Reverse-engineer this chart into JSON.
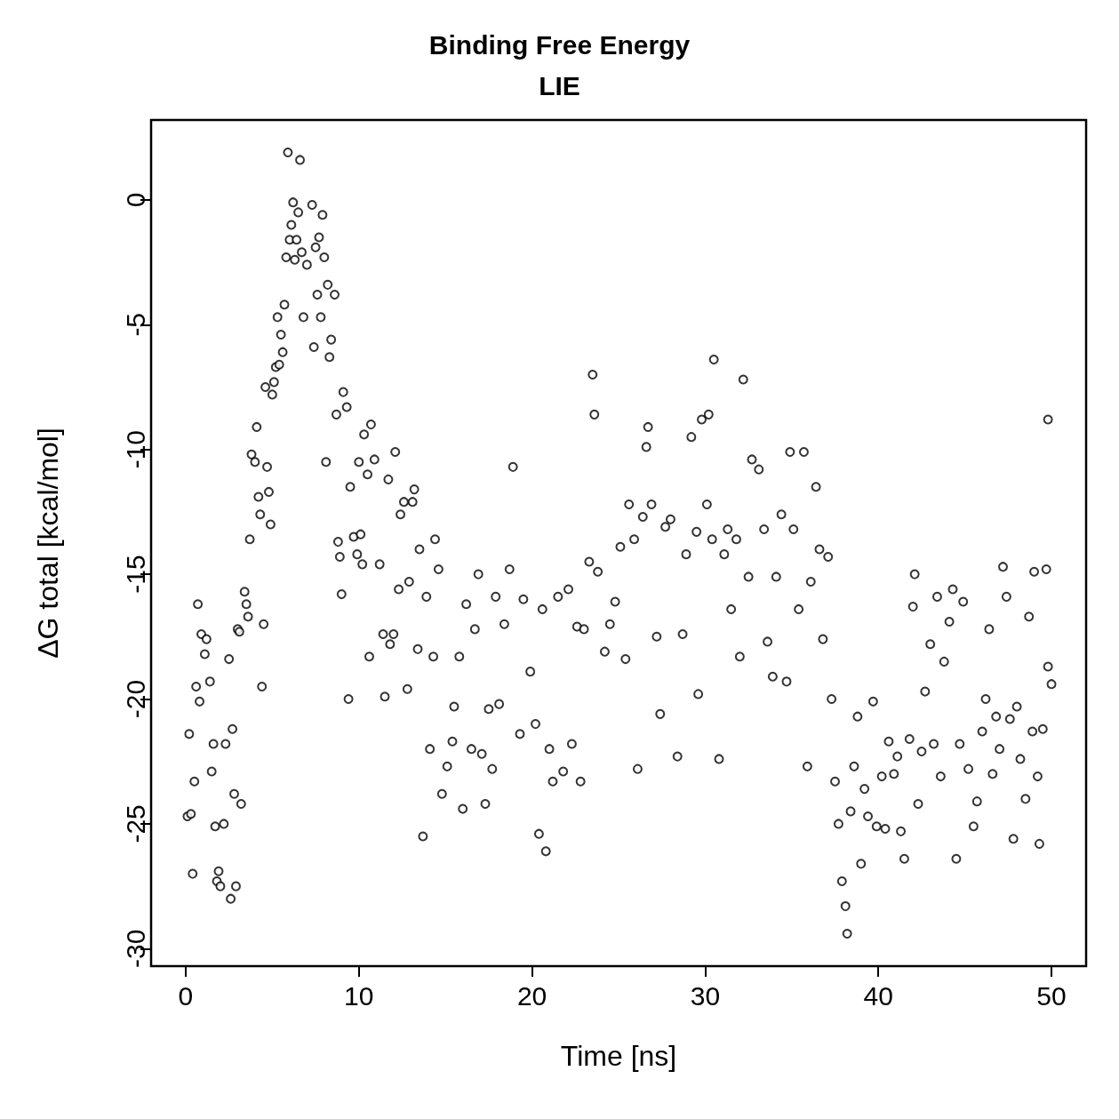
{
  "chart_data": {
    "type": "scatter",
    "title": "Binding Free Energy",
    "subtitle": "LIE",
    "xlabel": "Time [ns]",
    "ylabel": "ΔG total [kcal/mol]",
    "xlim": [
      -2,
      52
    ],
    "ylim": [
      -30.7,
      3.2
    ],
    "xticks": [
      0,
      10,
      20,
      30,
      40,
      50
    ],
    "yticks": [
      -30,
      -25,
      -20,
      -15,
      -10,
      -5,
      0
    ],
    "grid": false,
    "marker": "circle",
    "series": [
      {
        "color": "#000000",
        "x": [
          0.1,
          0.3,
          0.2,
          0.4,
          0.5,
          0.6,
          0.7,
          0.8,
          0.9,
          1.1,
          1.2,
          1.4,
          1.5,
          1.6,
          1.7,
          1.8,
          1.9,
          2.0,
          2.2,
          2.3,
          2.5,
          2.6,
          2.7,
          2.8,
          2.9,
          3.0,
          3.1,
          3.2,
          3.4,
          3.5,
          3.6,
          3.7,
          3.8,
          4.0,
          4.1,
          4.2,
          4.3,
          4.4,
          4.5,
          4.6,
          4.7,
          4.8,
          4.9,
          5.0,
          5.1,
          5.2,
          5.3,
          5.4,
          5.5,
          5.6,
          5.7,
          5.8,
          5.9,
          6.0,
          6.1,
          6.2,
          6.3,
          6.4,
          6.5,
          6.6,
          6.7,
          6.8,
          7.0,
          7.3,
          7.4,
          7.5,
          7.6,
          7.7,
          7.8,
          7.9,
          8.0,
          8.1,
          8.2,
          8.3,
          8.4,
          8.6,
          8.7,
          8.8,
          8.9,
          9.0,
          9.1,
          9.3,
          9.4,
          9.5,
          9.7,
          9.9,
          10.0,
          10.1,
          10.2,
          10.3,
          10.5,
          10.6,
          10.7,
          10.9,
          11.2,
          11.4,
          11.5,
          11.7,
          11.8,
          12.0,
          12.1,
          12.3,
          12.4,
          12.6,
          12.8,
          12.9,
          13.1,
          13.2,
          13.4,
          13.5,
          13.7,
          13.9,
          14.1,
          14.3,
          14.4,
          14.6,
          14.8,
          15.1,
          15.4,
          15.5,
          15.8,
          16.0,
          16.2,
          16.5,
          16.7,
          16.9,
          17.1,
          17.3,
          17.5,
          17.7,
          17.9,
          18.1,
          18.4,
          18.7,
          18.9,
          19.3,
          19.5,
          19.9,
          20.2,
          20.4,
          20.6,
          20.8,
          21.0,
          21.2,
          21.5,
          21.8,
          22.1,
          22.3,
          22.6,
          22.8,
          23.0,
          23.3,
          23.5,
          23.6,
          23.8,
          24.2,
          24.5,
          24.8,
          25.1,
          25.4,
          25.6,
          25.9,
          26.1,
          26.4,
          26.6,
          26.7,
          26.9,
          27.2,
          27.4,
          27.7,
          28.0,
          28.4,
          28.7,
          28.9,
          29.2,
          29.5,
          29.6,
          29.8,
          30.1,
          30.2,
          30.4,
          30.5,
          30.8,
          31.1,
          31.3,
          31.5,
          31.8,
          32.0,
          32.2,
          32.5,
          32.7,
          33.1,
          33.4,
          33.6,
          33.9,
          34.1,
          34.4,
          34.7,
          34.9,
          35.1,
          35.4,
          35.7,
          35.9,
          36.1,
          36.4,
          36.6,
          36.8,
          37.1,
          37.3,
          37.5,
          37.7,
          37.9,
          38.1,
          38.2,
          38.4,
          38.6,
          38.8,
          39.0,
          39.2,
          39.4,
          39.7,
          39.9,
          40.2,
          40.4,
          40.6,
          40.9,
          41.1,
          41.3,
          41.5,
          41.8,
          42.0,
          42.1,
          42.3,
          42.5,
          42.7,
          43.0,
          43.2,
          43.4,
          43.6,
          43.8,
          44.1,
          44.3,
          44.5,
          44.7,
          44.9,
          45.2,
          45.5,
          45.7,
          46.0,
          46.2,
          46.4,
          46.6,
          46.8,
          47.0,
          47.2,
          47.4,
          47.6,
          47.8,
          48.0,
          48.2,
          48.5,
          48.7,
          48.9,
          49.0,
          49.2,
          49.3,
          49.5,
          49.7,
          49.8,
          49.8,
          50.0
        ],
        "values": [
          -24.7,
          -24.6,
          -21.4,
          -27.0,
          -23.3,
          -19.5,
          -16.2,
          -20.1,
          -17.4,
          -18.2,
          -17.6,
          -19.3,
          -22.9,
          -21.8,
          -25.1,
          -27.3,
          -26.9,
          -27.5,
          -25.0,
          -21.8,
          -18.4,
          -28.0,
          -21.2,
          -23.8,
          -27.5,
          -17.2,
          -17.3,
          -24.2,
          -15.7,
          -16.2,
          -16.7,
          -13.6,
          -10.2,
          -10.5,
          -9.1,
          -11.9,
          -12.6,
          -19.5,
          -17.0,
          -7.5,
          -10.7,
          -11.7,
          -13.0,
          -7.8,
          -7.3,
          -6.7,
          -4.7,
          -6.6,
          -5.4,
          -6.1,
          -4.2,
          -2.3,
          1.9,
          -1.6,
          -1.0,
          -0.1,
          -2.4,
          -1.6,
          -0.5,
          1.6,
          -2.1,
          -4.7,
          -2.6,
          -0.2,
          -5.9,
          -1.9,
          -3.8,
          -1.5,
          -4.7,
          -0.6,
          -2.3,
          -10.5,
          -3.4,
          -6.3,
          -5.6,
          -3.8,
          -8.6,
          -13.7,
          -14.3,
          -15.8,
          -7.7,
          -8.3,
          -20.0,
          -11.5,
          -13.5,
          -14.2,
          -10.5,
          -13.4,
          -14.6,
          -9.4,
          -11.0,
          -18.3,
          -9.0,
          -10.4,
          -14.6,
          -17.4,
          -19.9,
          -11.2,
          -17.8,
          -17.4,
          -10.1,
          -15.6,
          -12.6,
          -12.1,
          -19.6,
          -15.3,
          -12.1,
          -11.6,
          -18.0,
          -14.0,
          -25.5,
          -15.9,
          -22.0,
          -18.3,
          -13.6,
          -14.8,
          -23.8,
          -22.7,
          -21.7,
          -20.3,
          -18.3,
          -24.4,
          -16.2,
          -22.0,
          -17.2,
          -15.0,
          -22.2,
          -24.2,
          -20.4,
          -22.8,
          -15.9,
          -20.2,
          -17.0,
          -14.8,
          -10.7,
          -21.4,
          -16.0,
          -18.9,
          -21.0,
          -25.4,
          -16.4,
          -26.1,
          -22.0,
          -23.3,
          -15.9,
          -22.9,
          -15.6,
          -21.8,
          -17.1,
          -23.3,
          -17.2,
          -14.5,
          -7.0,
          -8.6,
          -14.9,
          -18.1,
          -17.0,
          -16.1,
          -13.9,
          -18.4,
          -12.2,
          -13.6,
          -22.8,
          -12.7,
          -9.9,
          -9.1,
          -12.2,
          -17.5,
          -20.6,
          -13.1,
          -12.8,
          -22.3,
          -17.4,
          -14.2,
          -9.5,
          -13.3,
          -19.8,
          -8.8,
          -12.2,
          -8.6,
          -13.6,
          -6.4,
          -22.4,
          -14.2,
          -13.2,
          -16.4,
          -13.6,
          -18.3,
          -7.2,
          -15.1,
          -10.4,
          -10.8,
          -13.2,
          -17.7,
          -19.1,
          -15.1,
          -12.6,
          -19.3,
          -10.1,
          -13.2,
          -16.4,
          -10.1,
          -22.7,
          -15.3,
          -11.5,
          -14.0,
          -17.6,
          -14.3,
          -20.0,
          -23.3,
          -25.0,
          -27.3,
          -28.3,
          -29.4,
          -24.5,
          -22.7,
          -20.7,
          -26.6,
          -23.6,
          -24.7,
          -20.1,
          -25.1,
          -23.1,
          -25.2,
          -21.7,
          -23.0,
          -22.3,
          -25.3,
          -26.4,
          -21.6,
          -16.3,
          -15.0,
          -24.2,
          -22.1,
          -19.7,
          -17.8,
          -21.8,
          -15.9,
          -23.1,
          -18.5,
          -16.9,
          -15.6,
          -26.4,
          -21.8,
          -16.1,
          -22.8,
          -25.1,
          -24.1,
          -21.3,
          -20.0,
          -17.2,
          -23.0,
          -20.7,
          -22.0,
          -14.7,
          -15.9,
          -20.8,
          -25.6,
          -20.3,
          -22.4,
          -24.0,
          -16.7,
          -21.3,
          -14.9,
          -23.1,
          -25.8,
          -21.2,
          -14.8,
          -18.7,
          -8.8,
          -19.4
        ]
      }
    ]
  }
}
